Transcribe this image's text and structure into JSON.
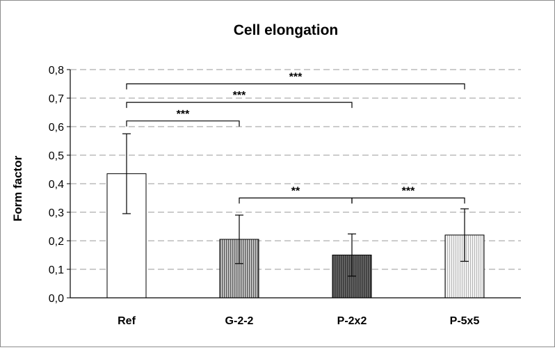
{
  "chart_data": {
    "type": "bar",
    "title": "Cell elongation",
    "xlabel": "",
    "ylabel": "Form factor",
    "ylim": [
      0,
      0.8
    ],
    "ytick_step": 0.1,
    "ytick_labels": [
      "0,0",
      "0,1",
      "0,2",
      "0,3",
      "0,4",
      "0,5",
      "0,6",
      "0,7",
      "0,8"
    ],
    "grid": "horizontal dashed",
    "categories": [
      "Ref",
      "G-2-2",
      "P-2x2",
      "P-5x5"
    ],
    "values": [
      0.435,
      0.205,
      0.15,
      0.22
    ],
    "errors": [
      0.14,
      0.085,
      0.074,
      0.092
    ],
    "bar_fills": [
      "white",
      "vertical-hatch-dense",
      "vertical-hatch-dark",
      "vertical-hatch-light"
    ],
    "significance": [
      {
        "from": "Ref",
        "to": "G-2-2",
        "label": "***",
        "level": 0.62
      },
      {
        "from": "Ref",
        "to": "P-2x2",
        "label": "***",
        "level": 0.685
      },
      {
        "from": "Ref",
        "to": "P-5x5",
        "label": "***",
        "level": 0.75
      },
      {
        "from": "G-2-2",
        "to": "P-2x2",
        "label": "**",
        "level": 0.35
      },
      {
        "from": "P-2x2",
        "to": "P-5x5",
        "label": "***",
        "level": 0.35
      }
    ]
  }
}
